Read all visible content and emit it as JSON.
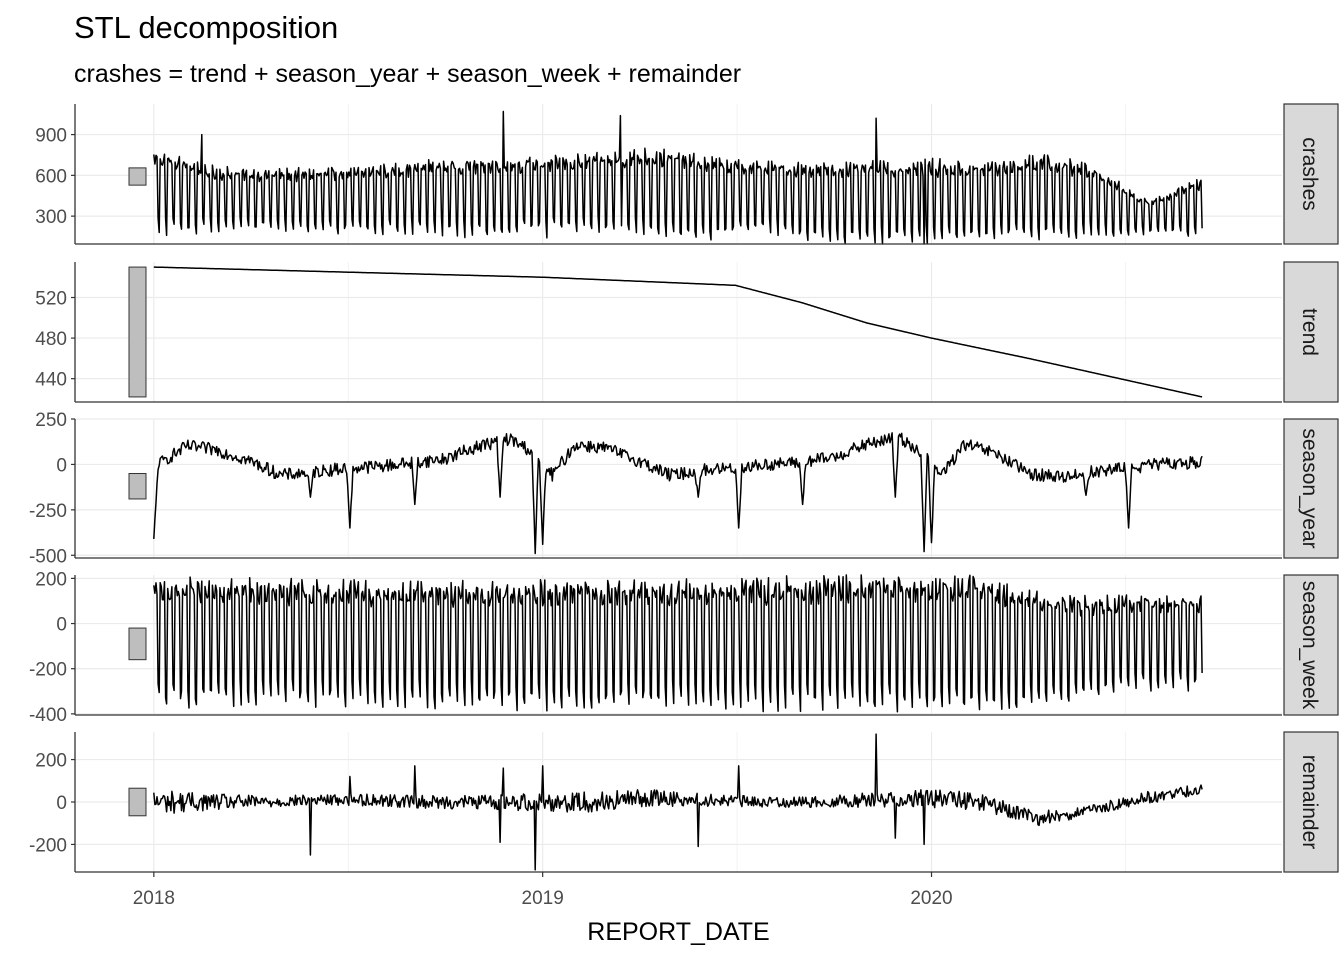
{
  "chart_data": {
    "type": "line",
    "title": "STL decomposition",
    "subtitle": "crashes = trend + season_year + season_week + remainder",
    "xlabel": "REPORT_DATE",
    "x_ticks": [
      {
        "label": "2018",
        "date": "2018-01-01"
      },
      {
        "label": "2019",
        "date": "2019-01-01"
      },
      {
        "label": "2020",
        "date": "2020-01-01"
      }
    ],
    "xlim": [
      "2017-10-19",
      "2020-11-25"
    ],
    "x_start": "2018-01-01",
    "x_end": "2020-09-11",
    "grid": true,
    "line_color": "#000000",
    "strip_color": "#d9d9d9",
    "bar_color": "#bebebe",
    "series": [
      {
        "name": "crashes",
        "ylim": [
          95,
          1125
        ],
        "y_ticks": [
          {
            "label": "900",
            "value": 900
          },
          {
            "label": "600",
            "value": 600
          },
          {
            "label": "300",
            "value": 300
          }
        ],
        "bar_range": [
          528,
          655
        ],
        "weekly_low": [
          200,
          200,
          220,
          200,
          200,
          200,
          180,
          220,
          200,
          200,
          150,
          220,
          140,
          130,
          140,
          150,
          160,
          170,
          185,
          180
        ],
        "weekly_high": [
          760,
          640,
          620,
          620,
          640,
          680,
          690,
          700,
          720,
          760,
          700,
          670,
          660,
          660,
          680,
          660,
          720,
          650,
          400,
          560
        ],
        "spikes": [
          {
            "date": "2018-02-15",
            "value": 900
          },
          {
            "date": "2018-11-25",
            "value": 1070
          },
          {
            "date": "2019-01-05",
            "value": 140
          },
          {
            "date": "2019-03-15",
            "value": 1040
          },
          {
            "date": "2019-11-10",
            "value": 1020
          },
          {
            "date": "2019-12-25",
            "value": 80
          }
        ]
      },
      {
        "name": "trend",
        "ylim": [
          417,
          555
        ],
        "y_ticks": [
          {
            "label": "520",
            "value": 520
          },
          {
            "label": "480",
            "value": 480
          },
          {
            "label": "440",
            "value": 440
          }
        ],
        "bar_range": [
          422,
          550
        ],
        "points": [
          {
            "date": "2018-01-01",
            "value": 550
          },
          {
            "date": "2018-07-01",
            "value": 545
          },
          {
            "date": "2019-01-01",
            "value": 540
          },
          {
            "date": "2019-07-01",
            "value": 532
          },
          {
            "date": "2019-09-01",
            "value": 515
          },
          {
            "date": "2019-11-01",
            "value": 495
          },
          {
            "date": "2020-01-01",
            "value": 480
          },
          {
            "date": "2020-04-01",
            "value": 460
          },
          {
            "date": "2020-09-11",
            "value": 422
          }
        ]
      },
      {
        "name": "season_year",
        "ylim": [
          -515,
          250
        ],
        "y_ticks": [
          {
            "label": "250",
            "value": 250
          },
          {
            "label": "0",
            "value": 0
          },
          {
            "label": "-250",
            "value": -250
          },
          {
            "label": "-500",
            "value": -500
          }
        ],
        "bar_range": [
          -190,
          -50
        ],
        "points": [
          {
            "date": "2018-01-01",
            "value": -430
          },
          {
            "date": "2018-01-05",
            "value": 0
          },
          {
            "date": "2018-02-01",
            "value": 100
          },
          {
            "date": "2018-03-01",
            "value": 80
          },
          {
            "date": "2018-04-01",
            "value": 20
          },
          {
            "date": "2018-05-01",
            "value": -60
          },
          {
            "date": "2018-06-01",
            "value": -40
          },
          {
            "date": "2018-07-01",
            "value": -20
          },
          {
            "date": "2018-08-01",
            "value": -10
          },
          {
            "date": "2018-09-01",
            "value": 10
          },
          {
            "date": "2018-10-01",
            "value": 30
          },
          {
            "date": "2018-11-01",
            "value": 100
          },
          {
            "date": "2018-12-01",
            "value": 140
          },
          {
            "date": "2018-12-20",
            "value": 80
          },
          {
            "date": "2019-01-10",
            "value": -60
          },
          {
            "date": "2019-02-01",
            "value": 110
          },
          {
            "date": "2019-03-01",
            "value": 90
          },
          {
            "date": "2019-04-01",
            "value": 20
          },
          {
            "date": "2019-05-01",
            "value": -60
          },
          {
            "date": "2019-06-01",
            "value": -30
          },
          {
            "date": "2019-07-01",
            "value": -20
          },
          {
            "date": "2019-08-01",
            "value": 0
          },
          {
            "date": "2019-09-01",
            "value": 10
          },
          {
            "date": "2019-10-01",
            "value": 40
          },
          {
            "date": "2019-11-01",
            "value": 110
          },
          {
            "date": "2019-12-01",
            "value": 150
          },
          {
            "date": "2019-12-20",
            "value": 80
          },
          {
            "date": "2020-01-10",
            "value": -60
          },
          {
            "date": "2020-02-01",
            "value": 110
          },
          {
            "date": "2020-03-01",
            "value": 60
          },
          {
            "date": "2020-04-01",
            "value": -50
          },
          {
            "date": "2020-05-01",
            "value": -70
          },
          {
            "date": "2020-06-01",
            "value": -40
          },
          {
            "date": "2020-07-01",
            "value": -20
          },
          {
            "date": "2020-08-01",
            "value": 0
          },
          {
            "date": "2020-09-11",
            "value": 15
          }
        ],
        "dips": [
          {
            "date": "2018-05-28",
            "value": -180
          },
          {
            "date": "2018-07-04",
            "value": -350
          },
          {
            "date": "2018-09-03",
            "value": -220
          },
          {
            "date": "2018-11-22",
            "value": -180
          },
          {
            "date": "2018-12-25",
            "value": -490
          },
          {
            "date": "2019-01-01",
            "value": -440
          },
          {
            "date": "2019-05-27",
            "value": -180
          },
          {
            "date": "2019-07-04",
            "value": -350
          },
          {
            "date": "2019-09-02",
            "value": -220
          },
          {
            "date": "2019-11-28",
            "value": -180
          },
          {
            "date": "2019-12-25",
            "value": -480
          },
          {
            "date": "2020-01-01",
            "value": -430
          },
          {
            "date": "2020-05-25",
            "value": -170
          },
          {
            "date": "2020-07-04",
            "value": -350
          }
        ]
      },
      {
        "name": "season_week",
        "ylim": [
          -405,
          215
        ],
        "y_ticks": [
          {
            "label": "200",
            "value": 200
          },
          {
            "label": "0",
            "value": 0
          },
          {
            "label": "-200",
            "value": -200
          },
          {
            "label": "-400",
            "value": -400
          }
        ],
        "bar_range": [
          -160,
          -20
        ],
        "weekly_low": [
          -340,
          -340,
          -340,
          -330,
          -330,
          -335,
          -340,
          -345,
          -345,
          -340,
          -340,
          -345,
          -350,
          -355,
          -360,
          -370,
          -360,
          -310,
          -270,
          -270
        ],
        "weekly_high": [
          165,
          160,
          160,
          155,
          150,
          150,
          145,
          150,
          155,
          155,
          160,
          165,
          170,
          175,
          175,
          180,
          110,
          90,
          100,
          100
        ]
      },
      {
        "name": "remainder",
        "ylim": [
          -330,
          330
        ],
        "y_ticks": [
          {
            "label": "200",
            "value": 200
          },
          {
            "label": "0",
            "value": 0
          },
          {
            "label": "-200",
            "value": -200
          }
        ],
        "bar_range": [
          -65,
          65
        ],
        "amplitude": [
          60,
          40,
          30,
          25,
          30,
          30,
          35,
          45,
          50,
          40,
          30,
          25,
          25,
          35,
          45,
          40,
          35,
          25,
          30,
          25
        ],
        "baseline": [
          0,
          0,
          0,
          10,
          10,
          0,
          0,
          0,
          0,
          20,
          10,
          0,
          0,
          10,
          20,
          0,
          -80,
          -40,
          20,
          60
        ],
        "spikes": [
          {
            "date": "2018-05-28",
            "value": -250
          },
          {
            "date": "2018-07-04",
            "value": 120
          },
          {
            "date": "2018-09-03",
            "value": 170
          },
          {
            "date": "2018-11-22",
            "value": -190
          },
          {
            "date": "2018-11-25",
            "value": 160
          },
          {
            "date": "2018-12-25",
            "value": -320
          },
          {
            "date": "2019-01-01",
            "value": 170
          },
          {
            "date": "2019-05-27",
            "value": -210
          },
          {
            "date": "2019-07-04",
            "value": 170
          },
          {
            "date": "2019-11-10",
            "value": 320
          },
          {
            "date": "2019-11-28",
            "value": -170
          },
          {
            "date": "2019-12-25",
            "value": -200
          }
        ]
      }
    ]
  }
}
